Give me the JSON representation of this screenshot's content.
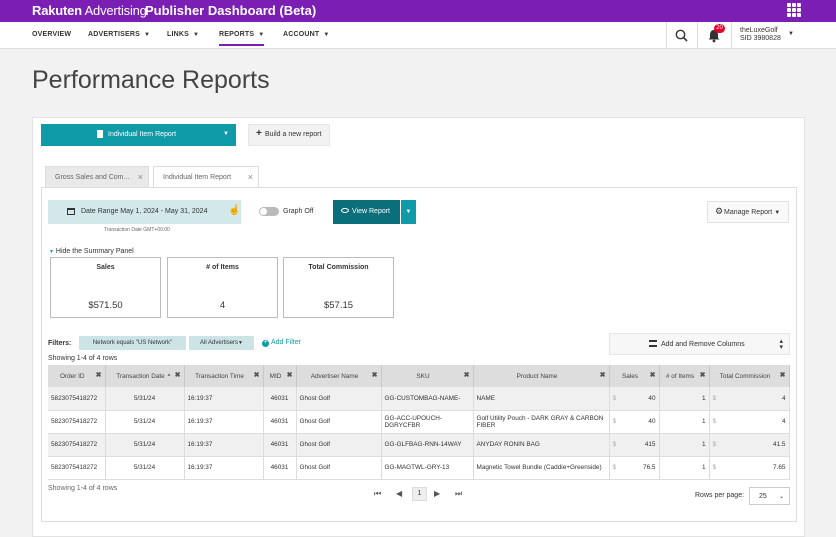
{
  "topbar": {
    "brand_bold": "Rakuten",
    "brand_light": " Advertising",
    "app_title": "Publisher Dashboard (Beta)"
  },
  "nav": {
    "items": [
      {
        "label": "OVERVIEW",
        "caret": false
      },
      {
        "label": "ADVERTISERS",
        "caret": true
      },
      {
        "label": "LINKS",
        "caret": true
      },
      {
        "label": "REPORTS",
        "caret": true,
        "active": true
      },
      {
        "label": "ACCOUNT",
        "caret": true
      }
    ],
    "notifications_count": "20",
    "account_name": "theLuxeGolf",
    "account_sid": "SID 3980828"
  },
  "page": {
    "title": "Performance Reports"
  },
  "toolbar": {
    "report_select_label": "Individual Item Report",
    "build_new_label": "Build a new report"
  },
  "tabs": [
    {
      "label": "Gross Sales and Com..."
    },
    {
      "label": "Individual Item Report"
    }
  ],
  "controls": {
    "date_range_label": "Date Range  May 1, 2024 - May 31, 2024",
    "timezone_note": "Transaction Date GMT+00:00",
    "graph_toggle_label": "Graph Off",
    "view_report_label": "View Report",
    "manage_report_label": "Manage Report"
  },
  "summary": {
    "toggle_label": "Hide the Summary Panel",
    "cards": [
      {
        "title": "Sales",
        "value": "$571.50"
      },
      {
        "title": "# of Items",
        "value": "4"
      },
      {
        "title": "Total Commission",
        "value": "$57.15"
      }
    ]
  },
  "filters": {
    "label": "Filters:",
    "chips": [
      "Network equals \"US Network\"",
      "All Advertisers"
    ],
    "add_filter_label": "Add Filter",
    "columns_button_label": "Add and Remove Columns"
  },
  "table": {
    "showing_top": "Showing 1-4 of 4 rows",
    "showing_bottom": "Showing 1-4 of 4 rows",
    "columns": [
      "Order ID",
      "Transaction Date",
      "Transaction Time",
      "MID",
      "Advertiser Name",
      "SKU",
      "Product Name",
      "Sales",
      "# of Items",
      "Total Commission"
    ],
    "currency_symbol": "$",
    "rows": [
      {
        "order_id": "5823075418272",
        "date": "5/31/24",
        "time": "16:19:37",
        "mid": "46031",
        "advertiser": "Ghost Golf",
        "sku": "GG-CUSTOMBAG-NAME-",
        "product": "NAME",
        "sales": "40",
        "items": "1",
        "commission": "4"
      },
      {
        "order_id": "5823075418272",
        "date": "5/31/24",
        "time": "16:19:37",
        "mid": "46031",
        "advertiser": "Ghost Golf",
        "sku": "GG-ACC-UPOUCH-DGRYCFBR",
        "product": "Golf Utility Pouch - DARK GRAY & CARBON FIBER",
        "sales": "40",
        "items": "1",
        "commission": "4"
      },
      {
        "order_id": "5823075418272",
        "date": "5/31/24",
        "time": "16:19:37",
        "mid": "46031",
        "advertiser": "Ghost Golf",
        "sku": "GG-GLFBAG-RNN-14WAY",
        "product": "ANYDAY RONIN BAG",
        "sales": "415",
        "items": "1",
        "commission": "41.5"
      },
      {
        "order_id": "5823075418272",
        "date": "5/31/24",
        "time": "16:19:37",
        "mid": "46031",
        "advertiser": "Ghost Golf",
        "sku": "GG-MAGTWL-GRY-13",
        "product": "Magnetic Towel Bundle (Caddie+Greenside)",
        "sales": "76.5",
        "items": "1",
        "commission": "7.65"
      }
    ]
  },
  "pagination": {
    "current_page": "1",
    "rows_per_page_label": "Rows per page:",
    "rows_per_page_value": "25"
  },
  "colors": {
    "brand_purple": "#7b1fb4",
    "teal": "#0f9aa7",
    "teal_dark": "#0a6f7a"
  }
}
